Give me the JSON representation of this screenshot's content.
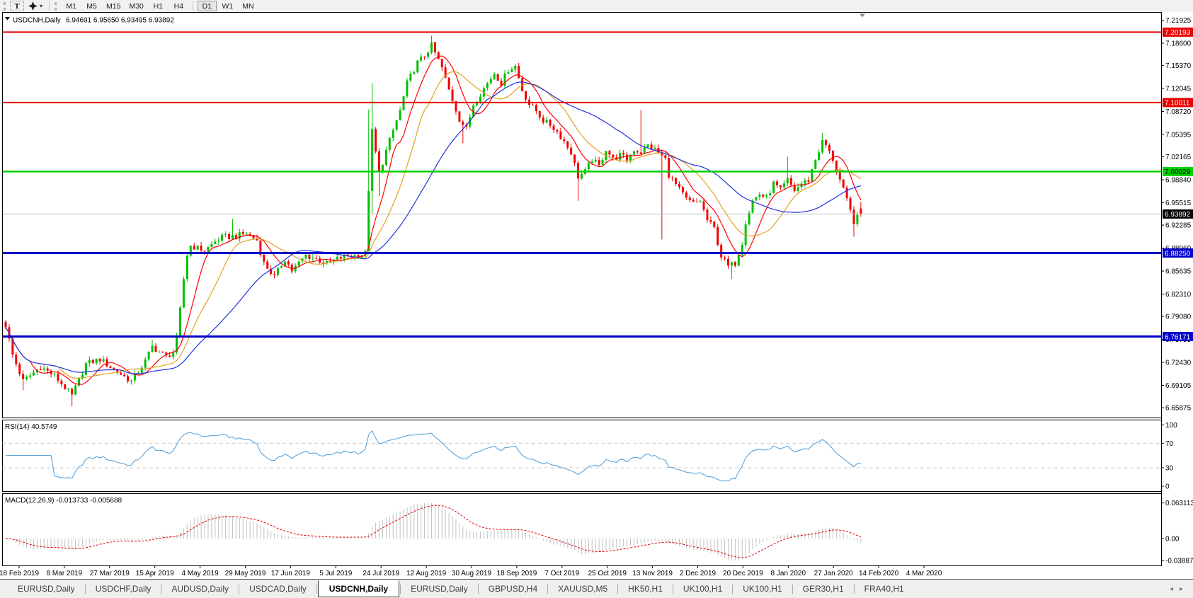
{
  "toolbar": {
    "text_tool": "T",
    "timeframes": [
      "M1",
      "M5",
      "M15",
      "M30",
      "H1",
      "H4",
      "D1",
      "W1",
      "MN"
    ],
    "active_timeframe": "D1"
  },
  "icons": {
    "tool_dropdown_caret": "▾",
    "tab_scroll_left": "◂",
    "tab_scroll_right": "▸"
  },
  "chart": {
    "title_symbol": "USDCNH,Daily",
    "title_ohlc": "6.94691 6.95650 6.93495 6.93892",
    "price_ticks": [
      "7.21925",
      "7.18600",
      "7.15370",
      "7.12045",
      "7.08720",
      "7.05395",
      "7.02165",
      "6.98840",
      "6.95515",
      "6.92285",
      "6.88960",
      "6.85635",
      "6.82310",
      "6.79080",
      "6.75755",
      "6.72430",
      "6.69105",
      "6.65875"
    ],
    "current_price": {
      "value": 6.93892,
      "label": "6.93892",
      "bg": "#000000",
      "text": "#FFFFFF"
    },
    "dates": [
      "18 Feb 2019",
      "8 Mar 2019",
      "27 Mar 2019",
      "15 Apr 2019",
      "4 May 2019",
      "29 May 2019",
      "17 Jun 2019",
      "5 Jul 2019",
      "24 Jul 2019",
      "12 Aug 2019",
      "30 Aug 2019",
      "18 Sep 2019",
      "7 Oct 2019",
      "25 Oct 2019",
      "13 Nov 2019",
      "2 Dec 2019",
      "20 Dec 2019",
      "8 Jan 2020",
      "27 Jan 2020",
      "14 Feb 2020",
      "4 Mar 2020"
    ]
  },
  "rsi": {
    "label": "RSI(14) 40.5749",
    "value": 40.5749,
    "ticks": [
      {
        "label": "100",
        "value": 100
      },
      {
        "label": "70",
        "value": 70
      },
      {
        "label": "30",
        "value": 30
      },
      {
        "label": "0",
        "value": 0
      }
    ],
    "guide_levels": [
      70,
      30
    ]
  },
  "macd": {
    "label": "MACD(12,26,9) -0.013733 -0.005688",
    "values": [
      -0.013733,
      -0.005688
    ],
    "ticks": [
      {
        "label": "0.063113",
        "value": 0.063113
      },
      {
        "label": "0.00",
        "value": 0
      },
      {
        "label": "-0.038872",
        "value": -0.038872
      }
    ]
  },
  "tabs": {
    "items": [
      "EURUSD,Daily",
      "USDCHF,Daily",
      "AUDUSD,Daily",
      "USDCAD,Daily",
      "USDCNH,Daily",
      "EURUSD,Daily",
      "GBPUSD,H4",
      "XAUUSD,M5",
      "HK50,H1",
      "UK100,H1",
      "UK100,H1",
      "GER30,H1",
      "FRA40,H1"
    ],
    "active_index": 4
  },
  "colors": {
    "candle_up": "#00BF00",
    "candle_down": "#F20000",
    "level_red": "#E80000",
    "level_green": "#00CE00",
    "level_blue": "#0202C8",
    "ma_fast": "#FF0000",
    "ma_mid": "#E0A220",
    "ma_slow": "#2233DD",
    "rsi_line": "#4D9BD5",
    "macd_hist": "#C0C0C0",
    "macd_signal": "#E00000",
    "current_price_line": "#C0C0C0",
    "shift_marker": "#8C8C8C"
  },
  "chart_data": {
    "type": "candlestick",
    "symbol": "USDCNH",
    "period": "Daily",
    "last_ohlc": {
      "open": 6.94691,
      "high": 6.9565,
      "low": 6.93495,
      "close": 6.93892
    },
    "num_candles": 246,
    "y_axis_range": [
      6.64405,
      7.23051
    ],
    "horizontal_levels": [
      {
        "price": 7.20193,
        "label": "7.20193",
        "color": "#E80000",
        "text": "#FFFFFF",
        "width": 2
      },
      {
        "price": 7.10011,
        "label": "7.10011",
        "color": "#E80000",
        "text": "#FFFFFF",
        "width": 2
      },
      {
        "price": 7.00029,
        "label": "7.00029",
        "color": "#00CE00",
        "text": "#000000",
        "width": 2.5
      },
      {
        "price": 6.8825,
        "label": "6.88250",
        "color": "#0202C8",
        "text": "#FFFFFF",
        "width": 3
      },
      {
        "price": 6.76171,
        "label": "6.76171",
        "color": "#0202C8",
        "text": "#FFFFFF",
        "width": 3
      }
    ],
    "moving_averages": [
      {
        "period": 8,
        "color": "#FF0000"
      },
      {
        "period": 16,
        "color": "#E0A220"
      },
      {
        "period": 34,
        "color": "#2233DD"
      }
    ],
    "indicators": [
      {
        "name": "RSI",
        "params": "14",
        "current": 40.5749,
        "scale": [
          0,
          30,
          70,
          100
        ]
      },
      {
        "name": "MACD",
        "params": "12,26,9",
        "current": [
          -0.013733,
          -0.005688
        ],
        "scale_max": 0.063113,
        "scale_min": -0.038872
      }
    ],
    "price_anchors": [
      [
        0,
        6.778
      ],
      [
        2,
        6.735
      ],
      [
        5,
        6.697
      ],
      [
        10,
        6.718
      ],
      [
        14,
        6.705
      ],
      [
        19,
        6.676
      ],
      [
        23,
        6.722
      ],
      [
        27,
        6.729
      ],
      [
        31,
        6.714
      ],
      [
        36,
        6.697
      ],
      [
        40,
        6.726
      ],
      [
        42,
        6.747
      ],
      [
        46,
        6.732
      ],
      [
        48,
        6.74
      ],
      [
        49,
        6.758
      ],
      [
        50,
        6.8
      ],
      [
        51,
        6.845
      ],
      [
        52,
        6.88
      ],
      [
        53,
        6.893
      ],
      [
        57,
        6.886
      ],
      [
        60,
        6.899
      ],
      [
        62,
        6.905
      ],
      [
        66,
        6.907
      ],
      [
        69,
        6.911
      ],
      [
        72,
        6.901
      ],
      [
        74,
        6.868
      ],
      [
        77,
        6.848
      ],
      [
        80,
        6.874
      ],
      [
        82,
        6.857
      ],
      [
        86,
        6.879
      ],
      [
        89,
        6.874
      ],
      [
        92,
        6.867
      ],
      [
        95,
        6.874
      ],
      [
        98,
        6.879
      ],
      [
        101,
        6.879
      ],
      [
        103,
        6.882
      ],
      [
        104,
        6.975
      ],
      [
        105,
        7.058
      ],
      [
        107,
        6.998
      ],
      [
        109,
        7.03
      ],
      [
        111,
        7.06
      ],
      [
        113,
        7.088
      ],
      [
        115,
        7.128
      ],
      [
        118,
        7.158
      ],
      [
        120,
        7.168
      ],
      [
        122,
        7.183
      ],
      [
        125,
        7.15
      ],
      [
        127,
        7.118
      ],
      [
        130,
        7.076
      ],
      [
        132,
        7.062
      ],
      [
        134,
        7.098
      ],
      [
        136,
        7.113
      ],
      [
        138,
        7.128
      ],
      [
        140,
        7.143
      ],
      [
        142,
        7.128
      ],
      [
        144,
        7.148
      ],
      [
        146,
        7.153
      ],
      [
        148,
        7.118
      ],
      [
        150,
        7.098
      ],
      [
        152,
        7.088
      ],
      [
        154,
        7.074
      ],
      [
        156,
        7.068
      ],
      [
        158,
        7.058
      ],
      [
        160,
        7.044
      ],
      [
        162,
        7.028
      ],
      [
        164,
        6.993
      ],
      [
        166,
        7.0
      ],
      [
        168,
        7.018
      ],
      [
        170,
        7.008
      ],
      [
        172,
        7.033
      ],
      [
        174,
        7.018
      ],
      [
        176,
        7.024
      ],
      [
        178,
        7.018
      ],
      [
        180,
        7.032
      ],
      [
        182,
        7.028
      ],
      [
        184,
        7.038
      ],
      [
        186,
        7.032
      ],
      [
        189,
        7.018
      ],
      [
        190,
        6.996
      ],
      [
        193,
        6.974
      ],
      [
        195,
        6.96
      ],
      [
        197,
        6.954
      ],
      [
        199,
        6.958
      ],
      [
        201,
        6.93
      ],
      [
        203,
        6.918
      ],
      [
        205,
        6.878
      ],
      [
        207,
        6.863
      ],
      [
        209,
        6.868
      ],
      [
        211,
        6.898
      ],
      [
        212,
        6.928
      ],
      [
        214,
        6.958
      ],
      [
        216,
        6.968
      ],
      [
        218,
        6.962
      ],
      [
        220,
        6.983
      ],
      [
        222,
        6.973
      ],
      [
        224,
        6.988
      ],
      [
        226,
        6.973
      ],
      [
        228,
        6.983
      ],
      [
        230,
        6.988
      ],
      [
        232,
        7.018
      ],
      [
        234,
        7.043
      ],
      [
        235,
        7.038
      ],
      [
        237,
        7.018
      ],
      [
        239,
        6.988
      ],
      [
        241,
        6.958
      ],
      [
        243,
        6.928
      ],
      [
        245,
        6.939
      ]
    ],
    "wick_spikes": [
      {
        "i": 5,
        "low": 6.684
      },
      {
        "i": 19,
        "low": 6.661
      },
      {
        "i": 42,
        "high": 6.757
      },
      {
        "i": 65,
        "high": 6.932
      },
      {
        "i": 104,
        "high": 7.09
      },
      {
        "i": 105,
        "high": 7.128,
        "low": 6.94
      },
      {
        "i": 107,
        "low": 6.965
      },
      {
        "i": 122,
        "high": 7.197
      },
      {
        "i": 131,
        "low": 7.041
      },
      {
        "i": 164,
        "low": 6.958
      },
      {
        "i": 182,
        "high": 7.089
      },
      {
        "i": 188,
        "low": 6.902
      },
      {
        "i": 208,
        "low": 6.845
      },
      {
        "i": 224,
        "high": 7.022
      },
      {
        "i": 234,
        "high": 7.056
      },
      {
        "i": 243,
        "low": 6.906
      }
    ]
  }
}
